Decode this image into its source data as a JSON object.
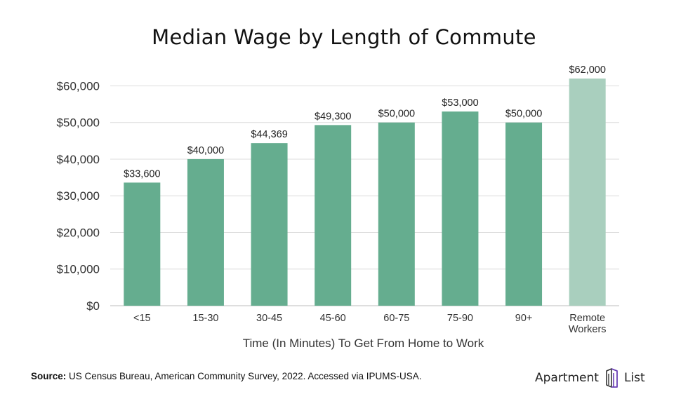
{
  "chart_data": {
    "type": "bar",
    "title": "Median Wage by Length of Commute",
    "xlabel": "Time (In Minutes) To Get From Home to Work",
    "ylabel": "",
    "ylim": [
      0,
      62000
    ],
    "yticks": [
      0,
      10000,
      20000,
      30000,
      40000,
      50000,
      60000
    ],
    "ytick_labels": [
      "$0",
      "$10,000",
      "$20,000",
      "$30,000",
      "$40,000",
      "$50,000",
      "$60,000"
    ],
    "grid": true,
    "categories": [
      [
        "<15"
      ],
      [
        "15-30"
      ],
      [
        "30-45"
      ],
      [
        "45-60"
      ],
      [
        "60-75"
      ],
      [
        "75-90"
      ],
      [
        "90+"
      ],
      [
        "Remote",
        "Workers"
      ]
    ],
    "values": [
      33600,
      40000,
      44369,
      49300,
      50000,
      53000,
      50000,
      62000
    ],
    "data_labels": [
      "$33,600",
      "$40,000",
      "$44,369",
      "$49,300",
      "$50,000",
      "$53,000",
      "$50,000",
      "$62,000"
    ],
    "bar_colors": [
      "#65ad8f",
      "#65ad8f",
      "#65ad8f",
      "#65ad8f",
      "#65ad8f",
      "#65ad8f",
      "#65ad8f",
      "#a9cfbe"
    ]
  },
  "footer": {
    "source_label": "Source:",
    "source_text": " US Census Bureau, American Community Survey, 2022. Accessed via IPUMS-USA."
  },
  "brand": {
    "name_left": "Apartment",
    "name_right": "List",
    "logo_icon": "apartment-list-logo-icon",
    "logo_color": "#6a3fb5"
  }
}
